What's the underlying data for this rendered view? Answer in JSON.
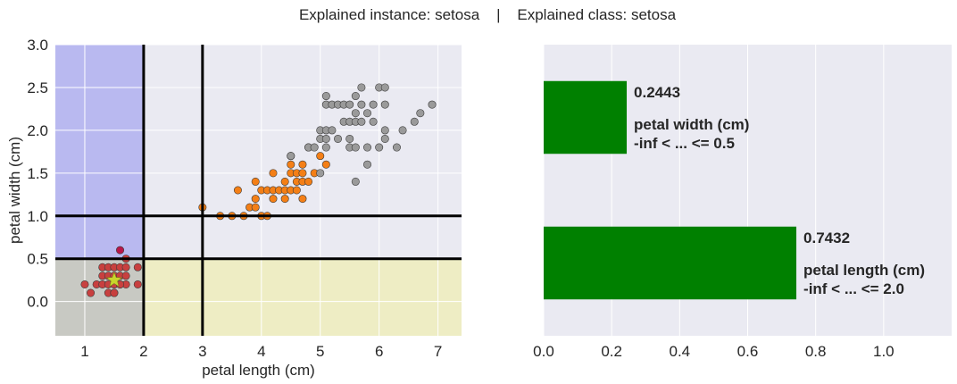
{
  "figure": {
    "suptitle": "Explained instance: setosa    |    Explained class: setosa"
  },
  "colors": {
    "panel_bg": "#EAEAF2",
    "grid": "#FFFFFF",
    "region_blue": "#B9B9F0",
    "region_yellow": "#EEEDC4",
    "region_gray": "#C8C9C3",
    "setosa": "#C8403F",
    "versicolor": "#F47F16",
    "virginica": "#9A9A9A",
    "instance_star": "#C8D62C",
    "outlier_point": "#B8174A",
    "bar": "#008000",
    "lines": "#000000"
  },
  "chart_data": [
    {
      "type": "scatter",
      "title": "",
      "xlabel": "petal length (cm)",
      "ylabel": "petal width (cm)",
      "xlim": [
        0.5,
        7.4
      ],
      "ylim": [
        -0.4,
        3.0
      ],
      "xticks": [
        "1",
        "2",
        "3",
        "4",
        "5",
        "6",
        "7"
      ],
      "yticks": [
        "0.0",
        "0.5",
        "1.0",
        "1.5",
        "2.0",
        "2.5",
        "3.0"
      ],
      "grid": true,
      "shaded_regions": [
        {
          "color": "region_blue",
          "x": [
            0.5,
            2.0
          ],
          "y": [
            0.5,
            3.0
          ]
        },
        {
          "color": "region_gray",
          "x": [
            0.5,
            2.0
          ],
          "y": [
            -0.4,
            0.5
          ]
        },
        {
          "color": "region_yellow",
          "x": [
            2.0,
            7.4
          ],
          "y": [
            -0.4,
            0.5
          ]
        }
      ],
      "threshold_lines": {
        "vertical": [
          2.0,
          3.0
        ],
        "horizontal": [
          0.5,
          1.0
        ]
      },
      "instance": {
        "x": 1.5,
        "y": 0.25,
        "marker": "star"
      },
      "series": [
        {
          "color": "setosa",
          "points": [
            [
              1.0,
              0.2
            ],
            [
              1.1,
              0.1
            ],
            [
              1.2,
              0.2
            ],
            [
              1.3,
              0.2
            ],
            [
              1.3,
              0.3
            ],
            [
              1.3,
              0.4
            ],
            [
              1.4,
              0.2
            ],
            [
              1.4,
              0.1
            ],
            [
              1.4,
              0.3
            ],
            [
              1.4,
              0.4
            ],
            [
              1.5,
              0.2
            ],
            [
              1.5,
              0.1
            ],
            [
              1.5,
              0.3
            ],
            [
              1.5,
              0.4
            ],
            [
              1.5,
              0.2
            ],
            [
              1.6,
              0.2
            ],
            [
              1.6,
              0.4
            ],
            [
              1.6,
              0.3
            ],
            [
              1.7,
              0.2
            ],
            [
              1.7,
              0.3
            ],
            [
              1.7,
              0.4
            ],
            [
              1.7,
              0.5
            ],
            [
              1.9,
              0.2
            ],
            [
              1.9,
              0.4
            ],
            [
              1.5,
              0.1
            ],
            [
              1.6,
              0.2
            ]
          ]
        },
        {
          "color": "outlier_point",
          "points": [
            [
              1.6,
              0.6
            ]
          ]
        },
        {
          "color": "versicolor",
          "points": [
            [
              3.0,
              1.1
            ],
            [
              3.3,
              1.0
            ],
            [
              3.5,
              1.0
            ],
            [
              3.6,
              1.3
            ],
            [
              3.7,
              1.0
            ],
            [
              3.8,
              1.1
            ],
            [
              3.9,
              1.1
            ],
            [
              3.9,
              1.2
            ],
            [
              3.9,
              1.4
            ],
            [
              4.0,
              1.0
            ],
            [
              4.0,
              1.3
            ],
            [
              4.1,
              1.0
            ],
            [
              4.1,
              1.3
            ],
            [
              4.2,
              1.2
            ],
            [
              4.2,
              1.3
            ],
            [
              4.2,
              1.5
            ],
            [
              4.3,
              1.3
            ],
            [
              4.4,
              1.2
            ],
            [
              4.4,
              1.3
            ],
            [
              4.4,
              1.4
            ],
            [
              4.5,
              1.3
            ],
            [
              4.5,
              1.5
            ],
            [
              4.5,
              1.6
            ],
            [
              4.6,
              1.3
            ],
            [
              4.6,
              1.4
            ],
            [
              4.6,
              1.5
            ],
            [
              4.7,
              1.2
            ],
            [
              4.7,
              1.4
            ],
            [
              4.7,
              1.5
            ],
            [
              4.8,
              1.4
            ],
            [
              4.8,
              1.8
            ],
            [
              4.9,
              1.5
            ],
            [
              5.0,
              1.7
            ],
            [
              5.1,
              1.6
            ],
            [
              4.5,
              1.7
            ],
            [
              4.7,
              1.6
            ]
          ]
        },
        {
          "color": "virginica",
          "points": [
            [
              4.5,
              1.7
            ],
            [
              4.8,
              1.8
            ],
            [
              4.9,
              1.8
            ],
            [
              5.0,
              1.9
            ],
            [
              5.0,
              2.0
            ],
            [
              5.0,
              1.5
            ],
            [
              5.1,
              1.8
            ],
            [
              5.1,
              1.9
            ],
            [
              5.1,
              2.0
            ],
            [
              5.1,
              2.3
            ],
            [
              5.1,
              2.4
            ],
            [
              5.2,
              2.0
            ],
            [
              5.2,
              2.3
            ],
            [
              5.3,
              1.9
            ],
            [
              5.3,
              2.3
            ],
            [
              5.4,
              2.1
            ],
            [
              5.4,
              2.3
            ],
            [
              5.5,
              1.8
            ],
            [
              5.5,
              2.1
            ],
            [
              5.5,
              1.9
            ],
            [
              5.6,
              1.4
            ],
            [
              5.6,
              1.8
            ],
            [
              5.6,
              2.1
            ],
            [
              5.6,
              2.2
            ],
            [
              5.6,
              2.4
            ],
            [
              5.7,
              2.1
            ],
            [
              5.7,
              2.3
            ],
            [
              5.7,
              2.5
            ],
            [
              5.8,
              1.8
            ],
            [
              5.8,
              2.2
            ],
            [
              5.9,
              2.1
            ],
            [
              5.9,
              2.3
            ],
            [
              6.0,
              1.8
            ],
            [
              6.0,
              2.5
            ],
            [
              6.1,
              1.9
            ],
            [
              6.1,
              2.3
            ],
            [
              6.1,
              2.5
            ],
            [
              6.3,
              1.8
            ],
            [
              6.4,
              2.0
            ],
            [
              6.6,
              2.1
            ],
            [
              6.7,
              2.2
            ],
            [
              6.9,
              2.3
            ],
            [
              5.8,
              1.6
            ],
            [
              6.1,
              2.0
            ],
            [
              5.5,
              2.3
            ]
          ]
        }
      ]
    },
    {
      "type": "bar",
      "orientation": "horizontal",
      "title": "",
      "xlim": [
        0.0,
        1.2
      ],
      "xticks": [
        "0.0",
        "0.2",
        "0.4",
        "0.6",
        "0.8",
        "1.0"
      ],
      "grid": true,
      "bars": [
        {
          "value": 0.2443,
          "value_label": "0.2443",
          "feature": "petal width (cm)",
          "rule": "-inf < ... <= 0.5"
        },
        {
          "value": 0.7432,
          "value_label": "0.7432",
          "feature": "petal length (cm)",
          "rule": "-inf < ... <= 2.0"
        }
      ]
    }
  ]
}
